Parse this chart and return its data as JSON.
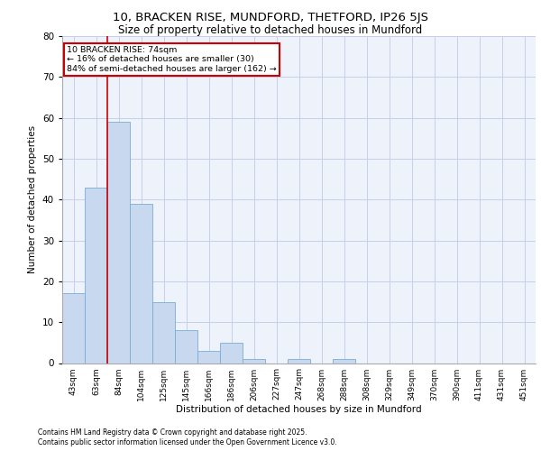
{
  "title_line1": "10, BRACKEN RISE, MUNDFORD, THETFORD, IP26 5JS",
  "title_line2": "Size of property relative to detached houses in Mundford",
  "xlabel": "Distribution of detached houses by size in Mundford",
  "ylabel": "Number of detached properties",
  "categories": [
    "43sqm",
    "63sqm",
    "84sqm",
    "104sqm",
    "125sqm",
    "145sqm",
    "166sqm",
    "186sqm",
    "206sqm",
    "227sqm",
    "247sqm",
    "268sqm",
    "288sqm",
    "308sqm",
    "329sqm",
    "349sqm",
    "370sqm",
    "390sqm",
    "411sqm",
    "431sqm",
    "451sqm"
  ],
  "values": [
    17,
    43,
    59,
    39,
    15,
    8,
    3,
    5,
    1,
    0,
    1,
    0,
    1,
    0,
    0,
    0,
    0,
    0,
    0,
    0,
    0
  ],
  "bar_color": "#c8d8ef",
  "bar_edge_color": "#7aadd4",
  "ylim": [
    0,
    80
  ],
  "yticks": [
    0,
    10,
    20,
    30,
    40,
    50,
    60,
    70,
    80
  ],
  "annotation_title": "10 BRACKEN RISE: 74sqm",
  "annotation_line2": "← 16% of detached houses are smaller (30)",
  "annotation_line3": "84% of semi-detached houses are larger (162) →",
  "annotation_box_color": "#ffffff",
  "annotation_border_color": "#cc0000",
  "footer_line1": "Contains HM Land Registry data © Crown copyright and database right 2025.",
  "footer_line2": "Contains public sector information licensed under the Open Government Licence v3.0.",
  "background_color": "#eef2fb",
  "grid_color": "#c5cfe8"
}
